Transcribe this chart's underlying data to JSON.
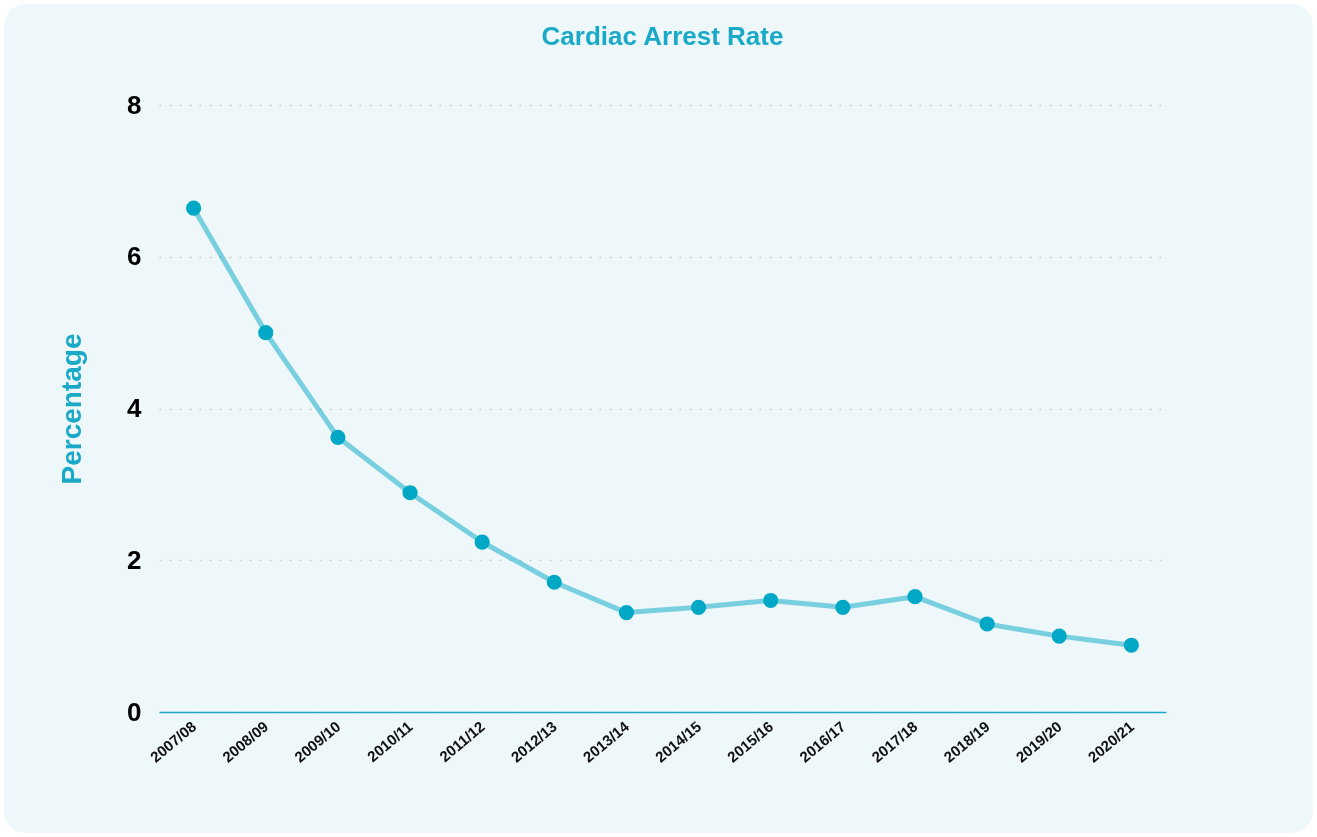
{
  "chart_data": {
    "type": "line",
    "title": "Cardiac Arrest Rate",
    "ylabel": "Percentage",
    "categories": [
      "2007/08",
      "2008/09",
      "2009/10",
      "2010/11",
      "2011/12",
      "2012/13",
      "2013/14",
      "2014/15",
      "2015/16",
      "2016/17",
      "2017/18",
      "2018/19",
      "2019/20",
      "2020/21"
    ],
    "series": [
      {
        "color": "#00a8c6",
        "values": [
          6.64,
          5.0,
          3.62,
          2.89,
          2.24,
          1.71,
          1.31,
          1.38,
          1.47,
          1.38,
          1.52,
          1.16,
          1.0,
          0.88
        ]
      }
    ],
    "ylim": [
      0,
      8
    ],
    "yticks": [
      0,
      2,
      4,
      6,
      8
    ],
    "grid": "y",
    "marker": "circle",
    "line_style": "solid"
  }
}
